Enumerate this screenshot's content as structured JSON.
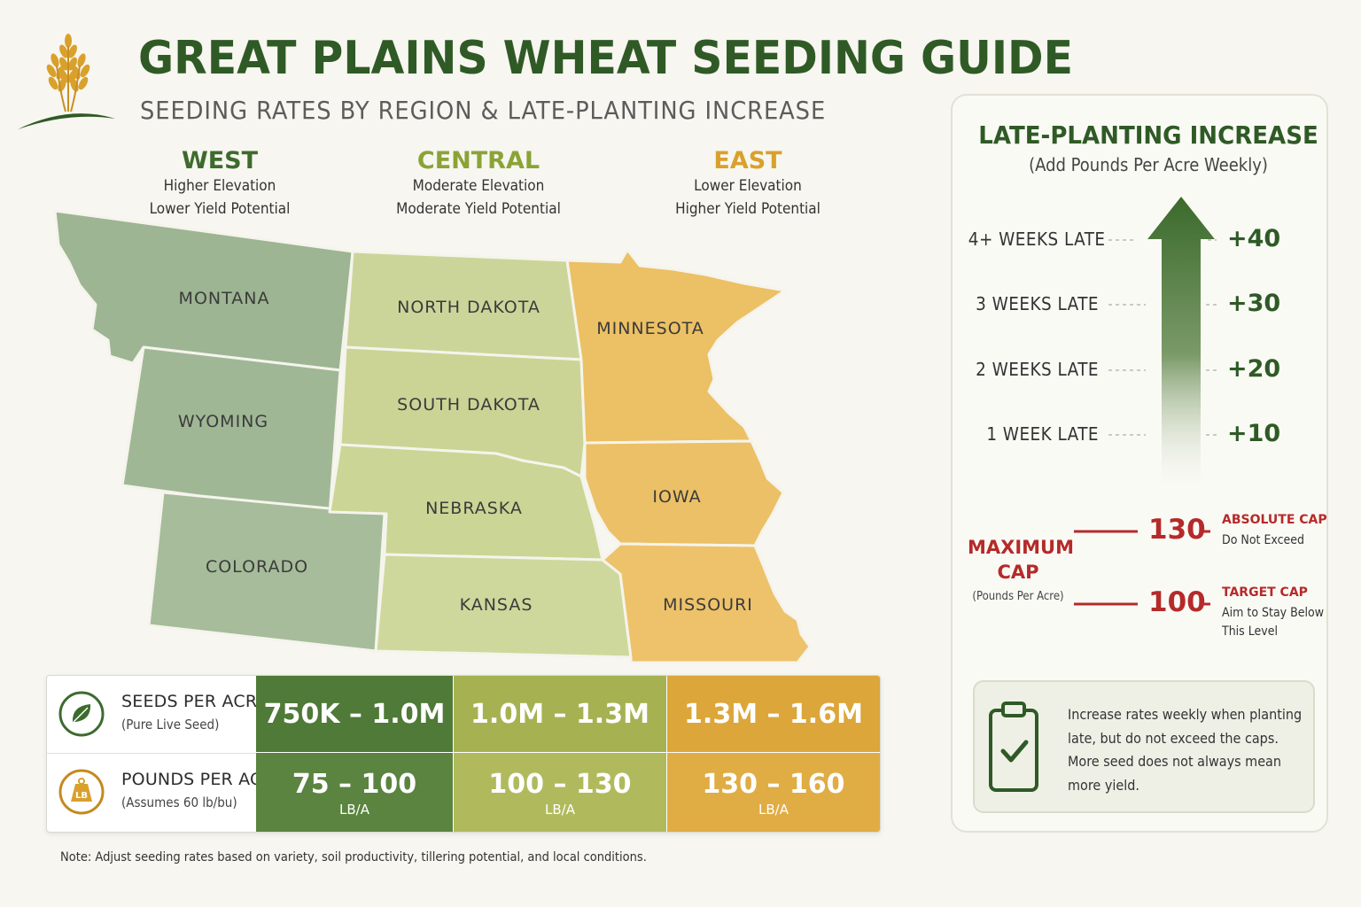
{
  "header": {
    "title": "GREAT PLAINS WHEAT SEEDING GUIDE",
    "subtitle": "SEEDING RATES BY REGION & LATE-PLANTING INCREASE"
  },
  "regions": [
    {
      "name": "WEST",
      "line1": "Higher Elevation",
      "line2": "Lower Yield Potential",
      "color": "#3d6b2e"
    },
    {
      "name": "CENTRAL",
      "line1": "Moderate Elevation",
      "line2": "Moderate Yield Potential",
      "color": "#8aa337"
    },
    {
      "name": "EAST",
      "line1": "Lower Elevation",
      "line2": "Higher Yield Potential",
      "color": "#d9a12c"
    }
  ],
  "states": {
    "montana": "MONTANA",
    "wyoming": "WYOMING",
    "colorado": "COLORADO",
    "north_dakota": "NORTH DAKOTA",
    "south_dakota": "SOUTH DAKOTA",
    "nebraska": "NEBRASKA",
    "kansas": "KANSAS",
    "minnesota": "MINNESOTA",
    "iowa": "IOWA",
    "missouri": "MISSOURI"
  },
  "region_fill_colors": {
    "west": "#9db592",
    "central": "#cbd596",
    "east": "#ecc064"
  },
  "rates_table": {
    "rows": [
      {
        "title": "SEEDS PER ACRE",
        "subtitle": "(Pure Live Seed)",
        "icon": "leaf-icon",
        "values": [
          "750K – 1.0M",
          "1.0M – 1.3M",
          "1.3M – 1.6M"
        ],
        "unit": ""
      },
      {
        "title": "POUNDS PER ACRE",
        "subtitle": "(Assumes 60 lb/bu)",
        "icon": "weight-icon",
        "icon_text": "LB",
        "values": [
          "75 – 100",
          "100 – 130",
          "130 – 160"
        ],
        "unit": "LB/A"
      }
    ],
    "row_colors": [
      [
        "#4f7a37",
        "#a6b252",
        "#dca63a"
      ],
      [
        "#5a843f",
        "#b0ba5d",
        "#e0ac44"
      ]
    ]
  },
  "footnote": "Note: Adjust seeding rates based on variety, soil productivity, tillering potential, and local conditions.",
  "late_planting": {
    "title": "LATE-PLANTING INCREASE",
    "subtitle": "(Add Pounds Per Acre Weekly)",
    "steps": [
      {
        "label": "4+ WEEKS LATE",
        "value": "+40"
      },
      {
        "label": "3 WEEKS LATE",
        "value": "+30"
      },
      {
        "label": "2 WEEKS LATE",
        "value": "+20"
      },
      {
        "label": "1 WEEK LATE",
        "value": "+10"
      }
    ],
    "cap_title": "MAXIMUM CAP",
    "cap_subtitle": "(Pounds Per Acre)",
    "caps": [
      {
        "value": "130",
        "label": "ABSOLUTE CAP",
        "desc": "Do Not Exceed"
      },
      {
        "value": "100",
        "label": "TARGET CAP",
        "desc": "Aim to Stay Below This Level"
      }
    ],
    "note": "Increase rates weekly when planting late, but do not exceed the caps. More seed does not always mean more yield."
  }
}
